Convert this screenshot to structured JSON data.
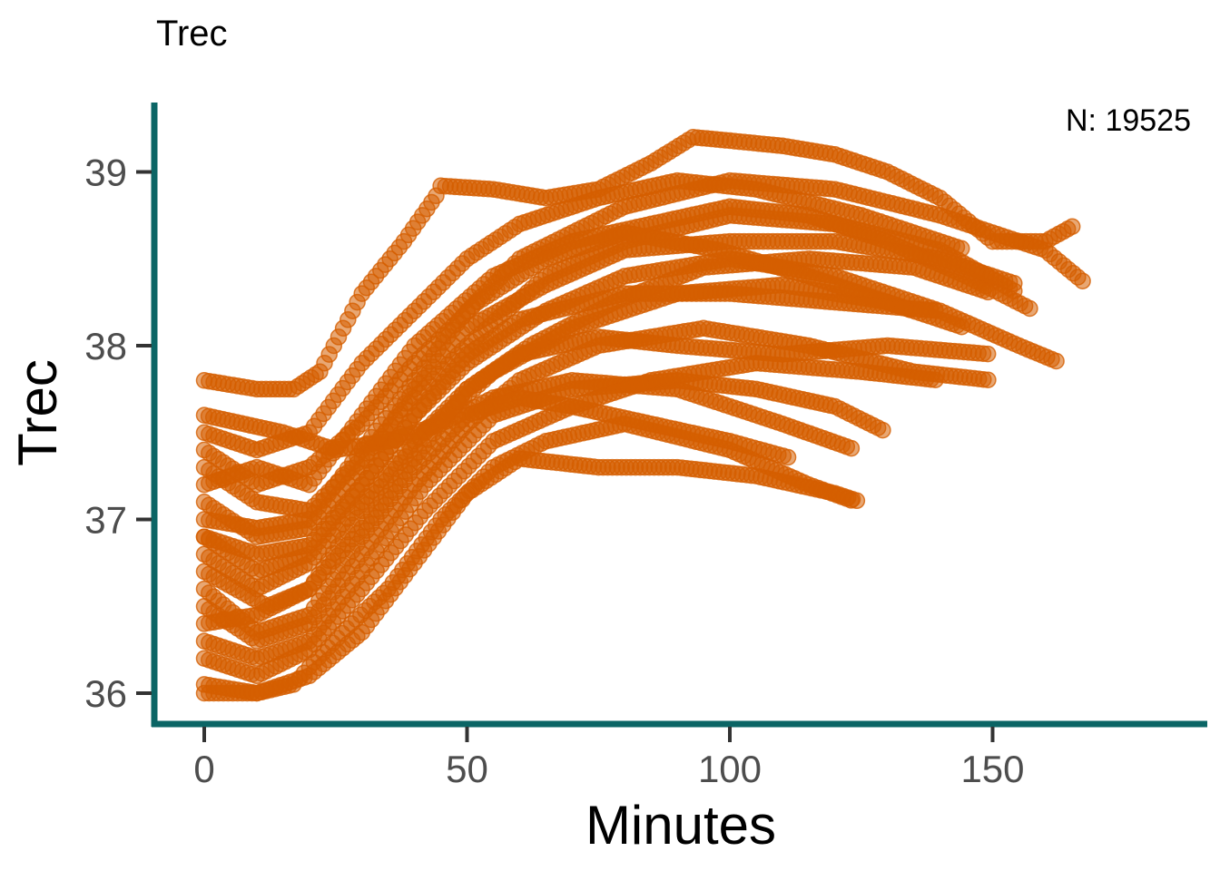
{
  "chart_data": {
    "type": "scatter",
    "title": "Trec",
    "xlabel": "Minutes",
    "ylabel": "Trec",
    "annotation": "N: 19525",
    "xlim": [
      -2,
      190
    ],
    "ylim": [
      35.9,
      39.3
    ],
    "x_ticks": [
      0,
      50,
      100,
      150
    ],
    "y_ticks": [
      36,
      37,
      38,
      39
    ],
    "grid": false,
    "legend": "none",
    "point_color": "#D55E00",
    "point_opacity": 0.55,
    "axis_color": "#0B6565",
    "tick_color": "#333333",
    "series": [
      {
        "x": [
          0,
          10,
          17,
          22,
          30,
          38,
          45
        ],
        "y": [
          37.8,
          37.75,
          37.75,
          37.85,
          38.3,
          38.6,
          38.9
        ]
      },
      {
        "x": [
          45,
          55,
          65,
          75,
          85,
          93,
          100,
          110,
          120,
          130,
          140,
          150,
          160,
          166
        ],
        "y": [
          38.92,
          38.9,
          38.85,
          38.9,
          39.05,
          39.2,
          39.18,
          39.15,
          39.1,
          39.0,
          38.85,
          38.6,
          38.6,
          38.7
        ]
      },
      {
        "x": [
          0,
          10,
          17,
          20,
          28,
          35,
          45,
          55,
          65,
          80,
          100,
          115,
          124
        ],
        "y": [
          36.0,
          36.0,
          36.05,
          36.15,
          36.4,
          36.6,
          37.0,
          37.3,
          37.45,
          37.55,
          37.4,
          37.2,
          37.1
        ]
      },
      {
        "x": [
          0,
          10,
          20,
          30,
          40,
          50,
          60,
          75,
          90,
          105,
          120,
          125
        ],
        "y": [
          36.05,
          36.0,
          36.1,
          36.35,
          36.75,
          37.15,
          37.35,
          37.3,
          37.3,
          37.25,
          37.15,
          37.1
        ]
      },
      {
        "x": [
          0,
          15,
          25,
          35,
          45,
          55,
          70,
          90,
          110,
          124
        ],
        "y": [
          37.6,
          37.5,
          37.4,
          37.45,
          37.55,
          37.7,
          37.8,
          37.75,
          37.55,
          37.4
        ]
      },
      {
        "x": [
          0,
          10,
          20,
          30,
          40,
          50,
          65,
          80,
          100,
          120,
          140,
          155,
          163
        ],
        "y": [
          36.9,
          36.7,
          36.8,
          37.2,
          37.6,
          37.9,
          38.2,
          38.4,
          38.5,
          38.4,
          38.2,
          38.0,
          37.9
        ]
      },
      {
        "x": [
          0,
          10,
          20,
          30,
          40,
          50,
          65,
          80,
          100,
          120,
          140,
          155
        ],
        "y": [
          37.3,
          37.1,
          37.05,
          37.35,
          37.7,
          38.0,
          38.4,
          38.6,
          38.75,
          38.7,
          38.55,
          38.3
        ]
      },
      {
        "x": [
          0,
          10,
          20,
          30,
          40,
          50,
          60,
          75,
          95,
          115,
          135,
          150
        ],
        "y": [
          36.5,
          36.3,
          36.4,
          36.8,
          37.2,
          37.55,
          37.8,
          38.0,
          38.1,
          38.0,
          37.85,
          37.8
        ]
      },
      {
        "x": [
          0,
          10,
          20,
          30,
          40,
          50,
          60,
          80,
          100,
          120,
          140,
          160,
          168
        ],
        "y": [
          37.0,
          36.95,
          37.0,
          37.4,
          37.8,
          38.2,
          38.5,
          38.8,
          38.95,
          38.9,
          38.75,
          38.55,
          38.35
        ]
      },
      {
        "x": [
          0,
          12,
          20,
          30,
          42,
          55,
          70,
          90,
          110,
          130,
          145
        ],
        "y": [
          36.7,
          36.5,
          36.6,
          37.05,
          37.5,
          37.85,
          38.1,
          38.3,
          38.35,
          38.25,
          38.1
        ]
      },
      {
        "x": [
          0,
          10,
          20,
          30,
          42,
          55,
          70,
          90,
          105,
          120,
          130
        ],
        "y": [
          36.3,
          36.2,
          36.3,
          36.7,
          37.2,
          37.6,
          37.75,
          37.8,
          37.75,
          37.65,
          37.5
        ]
      },
      {
        "x": [
          0,
          10,
          20,
          30,
          40,
          55,
          70,
          85,
          100,
          115,
          130,
          145,
          158
        ],
        "y": [
          37.2,
          37.3,
          37.2,
          37.6,
          38.0,
          38.4,
          38.6,
          38.7,
          38.8,
          38.75,
          38.6,
          38.4,
          38.2
        ]
      },
      {
        "x": [
          0,
          10,
          20,
          30,
          40,
          50,
          60,
          75,
          90,
          110,
          130,
          150
        ],
        "y": [
          36.8,
          36.6,
          36.75,
          37.1,
          37.45,
          37.75,
          37.95,
          38.05,
          38.0,
          37.95,
          38.0,
          37.95
        ]
      },
      {
        "x": [
          0,
          10,
          20,
          30,
          40,
          50,
          62,
          78,
          95,
          115,
          135,
          150
        ],
        "y": [
          36.4,
          36.45,
          36.6,
          36.95,
          37.35,
          37.75,
          38.0,
          38.25,
          38.45,
          38.5,
          38.45,
          38.3
        ]
      },
      {
        "x": [
          0,
          10,
          20,
          30,
          40,
          52,
          65,
          80,
          98,
          115,
          135
        ],
        "y": [
          37.4,
          37.2,
          37.3,
          37.55,
          37.9,
          38.25,
          38.5,
          38.65,
          38.55,
          38.4,
          38.2
        ]
      },
      {
        "x": [
          0,
          10,
          20,
          30,
          40,
          50,
          60,
          70,
          85,
          100,
          112
        ],
        "y": [
          36.6,
          36.35,
          36.45,
          36.9,
          37.3,
          37.6,
          37.7,
          37.65,
          37.55,
          37.45,
          37.35
        ]
      },
      {
        "x": [
          0,
          10,
          20,
          30,
          40,
          50,
          65,
          80,
          100,
          120,
          140,
          155
        ],
        "y": [
          37.1,
          36.9,
          36.95,
          37.3,
          37.75,
          38.1,
          38.35,
          38.55,
          38.6,
          38.6,
          38.5,
          38.35
        ]
      },
      {
        "x": [
          0,
          10,
          20,
          30,
          42,
          55,
          70,
          85,
          105,
          125,
          140
        ],
        "y": [
          36.2,
          36.1,
          36.25,
          36.6,
          37.05,
          37.45,
          37.65,
          37.8,
          37.9,
          37.85,
          37.8
        ]
      },
      {
        "x": [
          0,
          10,
          20,
          30,
          40,
          50,
          60,
          75,
          90,
          105,
          125,
          145
        ],
        "y": [
          37.5,
          37.4,
          37.5,
          37.9,
          38.2,
          38.5,
          38.7,
          38.85,
          38.95,
          38.9,
          38.75,
          38.55
        ]
      },
      {
        "x": [
          0,
          10,
          20,
          30,
          40,
          50,
          60,
          80,
          100,
          120,
          140
        ],
        "y": [
          36.9,
          36.8,
          36.85,
          37.2,
          37.6,
          37.95,
          38.15,
          38.3,
          38.3,
          38.25,
          38.2
        ]
      }
    ]
  }
}
